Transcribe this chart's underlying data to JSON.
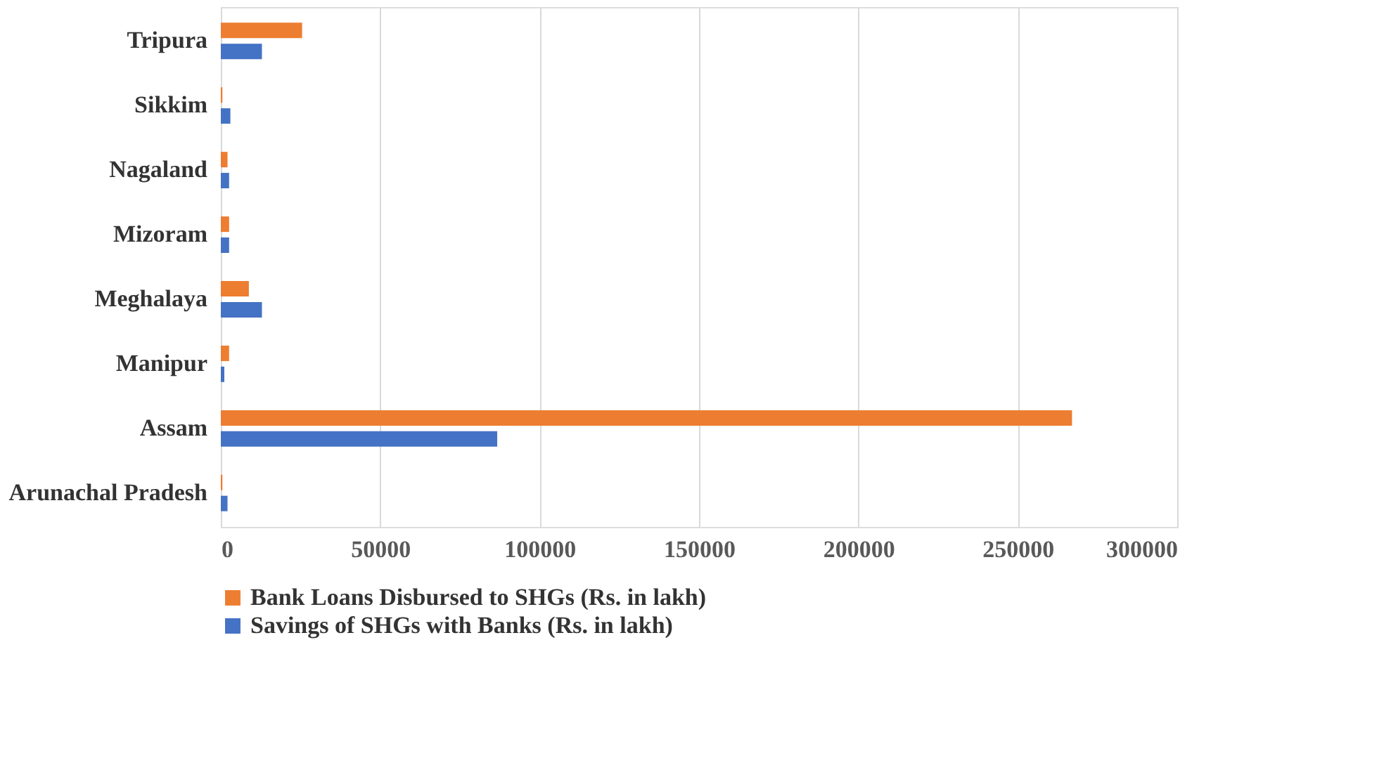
{
  "chart_data": {
    "type": "bar",
    "orientation": "horizontal",
    "categories": [
      "Tripura",
      "Sikkim",
      "Nagaland",
      "Mizoram",
      "Meghalaya",
      "Manipur",
      "Assam",
      "Arunachal Pradesh"
    ],
    "series": [
      {
        "name": "Bank  Loans Disbursed to SHGs (Rs. in lakh)",
        "color": "#ed7d31",
        "values": [
          25500,
          500,
          2100,
          2600,
          8800,
          2600,
          267000,
          500
        ]
      },
      {
        "name": "Savings of SHGs with Banks (Rs. in lakh)",
        "color": "#4472c4",
        "values": [
          12900,
          3000,
          2600,
          2600,
          12900,
          1100,
          86700,
          2100
        ]
      }
    ],
    "xlim": [
      0,
      300000
    ],
    "xticks": [
      0,
      50000,
      100000,
      150000,
      200000,
      250000,
      300000
    ],
    "grid": "x",
    "legend": "bottom"
  }
}
